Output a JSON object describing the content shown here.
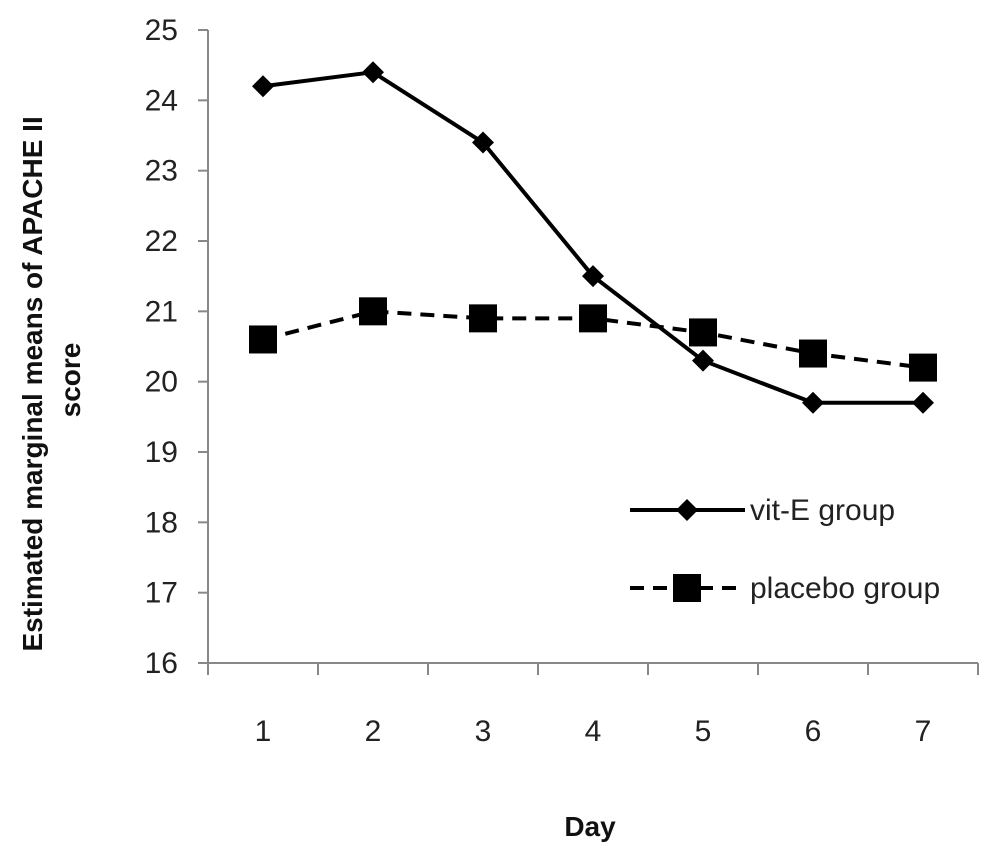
{
  "chart_data": {
    "type": "line",
    "title": "",
    "xlabel": "Day",
    "ylabel": "Estimated marginal means of APACHE II score",
    "ylabel_lines": [
      "Estimated marginal means of APACHE II",
      "score"
    ],
    "ylim": [
      16,
      25
    ],
    "yticks": [
      "16",
      "17",
      "18",
      "19",
      "20",
      "21",
      "22",
      "23",
      "24",
      "25"
    ],
    "categories": [
      "1",
      "2",
      "3",
      "4",
      "5",
      "6",
      "7"
    ],
    "grid": false,
    "legend_position": "bottom-right",
    "series": [
      {
        "name": "vit-E group",
        "line_style": "solid",
        "marker": "diamond",
        "color": "#000000",
        "values": [
          24.2,
          24.4,
          23.4,
          21.5,
          20.3,
          19.7,
          19.7
        ]
      },
      {
        "name": "placebo group",
        "line_style": "dashed",
        "marker": "square",
        "color": "#000000",
        "values": [
          20.6,
          21.0,
          20.9,
          20.9,
          20.7,
          20.4,
          20.2
        ]
      }
    ]
  }
}
